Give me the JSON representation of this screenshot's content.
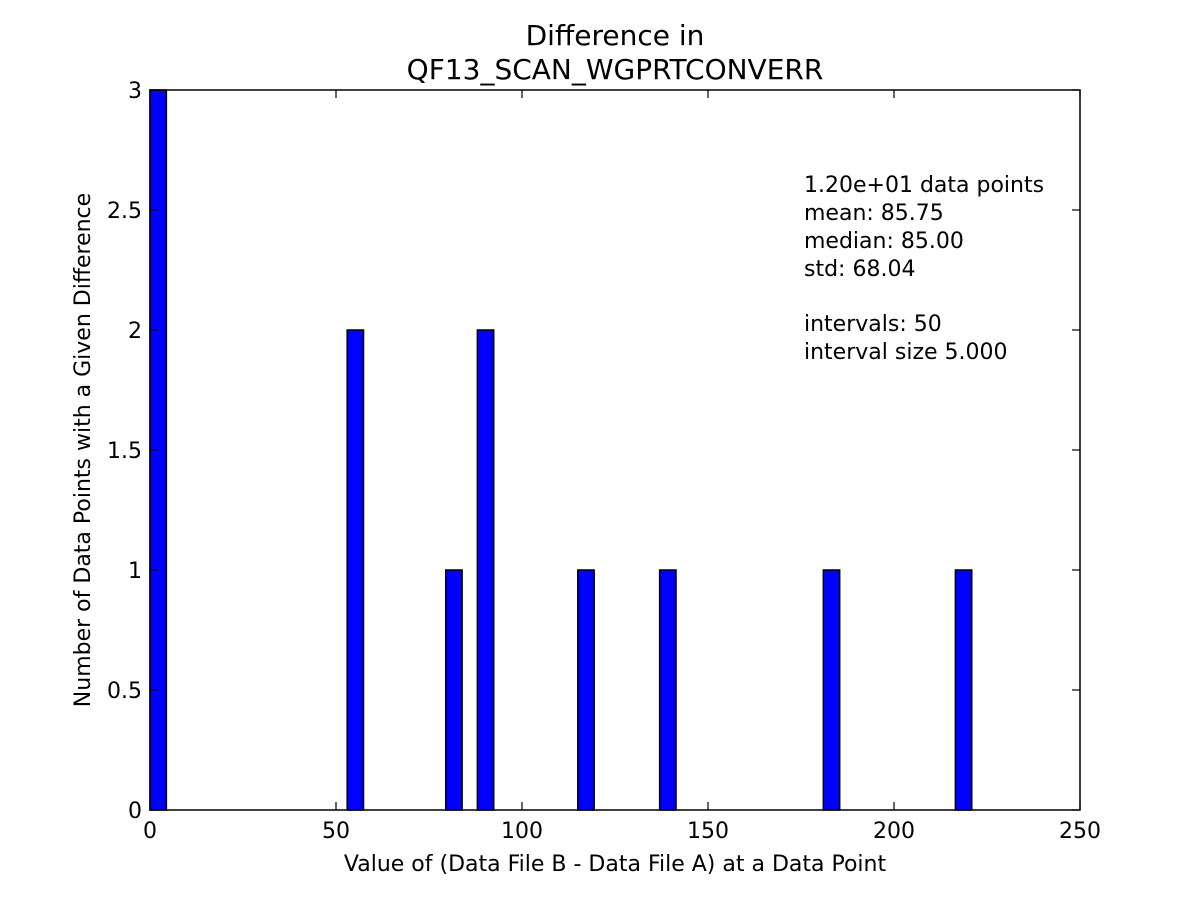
{
  "chart_data": {
    "type": "bar",
    "title_lines": [
      "Difference in",
      "QF13_SCAN_WGPRTCONVERR"
    ],
    "xlabel": "Value of (Data File B - Data File A) at a Data Point",
    "ylabel": "Number of Data Points with a Given Difference",
    "xlim": [
      0,
      250
    ],
    "ylim": [
      0,
      3
    ],
    "x_ticks": [
      0,
      50,
      100,
      150,
      200,
      250
    ],
    "y_ticks": [
      0,
      0.5,
      1,
      1.5,
      2,
      2.5,
      3
    ],
    "x_tick_labels": [
      "0",
      "50",
      "100",
      "150",
      "200",
      "250"
    ],
    "y_tick_labels": [
      "0",
      "0.5",
      "1",
      "1.5",
      "2",
      "2.5",
      "3"
    ],
    "bin_width": 4.4,
    "bars": [
      {
        "x": 0,
        "value": 3
      },
      {
        "x": 53,
        "value": 2
      },
      {
        "x": 79.5,
        "value": 1
      },
      {
        "x": 88,
        "value": 2
      },
      {
        "x": 115,
        "value": 1
      },
      {
        "x": 137,
        "value": 1
      },
      {
        "x": 181,
        "value": 1
      },
      {
        "x": 216.5,
        "value": 1
      }
    ],
    "bar_color": "#0000ff",
    "grid": false,
    "stats_lines": [
      "1.20e+01 data points",
      "mean: 85.75",
      "median: 85.00",
      "std: 68.04",
      "",
      "intervals: 50",
      "interval size 5.000"
    ]
  }
}
